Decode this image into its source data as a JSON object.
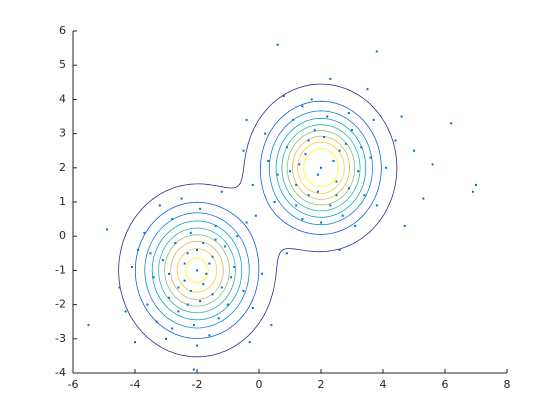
{
  "chart_data": {
    "type": "scatter",
    "color": "#0072bd",
    "xlim": [
      -6,
      8
    ],
    "ylim": [
      -4,
      6
    ],
    "xticks": [
      -6,
      -4,
      -2,
      0,
      2,
      4,
      6,
      8
    ],
    "yticks": [
      -4,
      -3,
      -2,
      -1,
      0,
      1,
      2,
      3,
      4,
      5,
      6
    ],
    "x": [
      -2,
      -1.5,
      -2.4,
      -1.8,
      -2.9,
      -1.2,
      -2.2,
      -3.1,
      -0.8,
      -2.6,
      -1.9,
      -1.4,
      -3.4,
      -2.1,
      -0.5,
      -3.7,
      -1.7,
      -2.3,
      -2.8,
      -1.1,
      -0.2,
      -3.3,
      -1.6,
      -2.5,
      -4.1,
      -0.4,
      -2,
      -3.0,
      -1.3,
      -4.5,
      -2.7,
      -1.9,
      0.1,
      -3.6,
      -1.0,
      -2.2,
      -1.6,
      -2.9,
      -2.4,
      -1.8,
      -0.7,
      -3.9,
      -2.1,
      -5.5,
      -4.9,
      -4.0,
      0.4,
      -1.2,
      -3.2,
      -0.3,
      -2.6,
      -1.5,
      -2.0,
      -3.5,
      -0.9,
      -2.3,
      -1.4,
      -2.8,
      -0.1,
      -4.3,
      2,
      1.5,
      2.5,
      1.2,
      2.8,
      1.8,
      3.2,
      0.9,
      2.3,
      1.6,
      3.0,
      0.6,
      2.1,
      3.6,
      1.1,
      2.7,
      0.3,
      1.9,
      2.4,
      3.4,
      1.4,
      2.9,
      0.2,
      4.1,
      1.7,
      3.8,
      0.5,
      2.2,
      -0.2,
      4.4,
      0.6,
      3.8,
      7.0,
      6.9,
      6.2,
      5.3,
      4.7,
      2.6,
      0.9,
      -0.4,
      1.3,
      2.6,
      1.9,
      3.3,
      1.6,
      2.0,
      3.1,
      0.8,
      4.6,
      5.6,
      1.0,
      2.5,
      3.7,
      1.4,
      2.9,
      -0.5,
      5.0,
      3.5,
      1.2,
      2.3
    ],
    "y": [
      -1,
      -0.6,
      -1.3,
      -0.2,
      -1.8,
      -1.5,
      0.1,
      -0.7,
      -0.9,
      -2.2,
      -1.9,
      0.3,
      -1.2,
      -2.6,
      -1.6,
      0.1,
      -1.1,
      -0.5,
      0.5,
      -0.3,
      -2.1,
      -2.5,
      -2.9,
      1.1,
      -0.9,
      0.4,
      -3.2,
      -3.0,
      -2.4,
      -1.5,
      -0.2,
      0.8,
      -1.1,
      -2.0,
      -2.0,
      -1.6,
      -0.8,
      -1.1,
      -0.8,
      -1.4,
      0.0,
      -0.4,
      -3.9,
      -2.6,
      0.2,
      -3.1,
      -2.6,
      1.3,
      0.9,
      -3.1,
      -1.5,
      -1.7,
      -0.4,
      -0.5,
      -1.2,
      -2.0,
      -0.1,
      -2.7,
      0.6,
      -2.2,
      2,
      2.4,
      1.6,
      1.5,
      2.7,
      3.1,
      1.9,
      2.6,
      0.9,
      1.2,
      3.1,
      1.8,
      2.9,
      2.3,
      3.4,
      0.6,
      2.2,
      1.8,
      2.2,
      1.2,
      0.5,
      3.6,
      3.0,
      2.0,
      4.0,
      0.9,
      1.0,
      3.5,
      1.5,
      2.8,
      5.6,
      5.4,
      1.5,
      1.3,
      3.3,
      1.1,
      0.3,
      -0.4,
      -0.5,
      3.4,
      2.1,
      2.5,
      1.3,
      2.6,
      2.8,
      0.4,
      0.3,
      4.1,
      3.5,
      2.1,
      1.9,
      1.2,
      3.4,
      3.8,
      1.4,
      2.5,
      2.5,
      4.3,
      0.9,
      4.6
    ],
    "components": [
      {
        "mean": [
          -2,
          -1
        ],
        "sigma": 1.05,
        "weight": 0.5
      },
      {
        "mean": [
          2,
          2
        ],
        "sigma": 1,
        "weight": 0.5
      }
    ],
    "contour_levels": [
      0.004,
      0.012,
      0.02,
      0.028,
      0.036,
      0.044,
      0.052,
      0.06,
      0.068
    ],
    "contour_colors": [
      "#352a87",
      "#0f5cdd",
      "#1481d6",
      "#06a4ca",
      "#2eb7a4",
      "#87bf77",
      "#d1bb59",
      "#fec832",
      "#f9fb0e"
    ]
  }
}
